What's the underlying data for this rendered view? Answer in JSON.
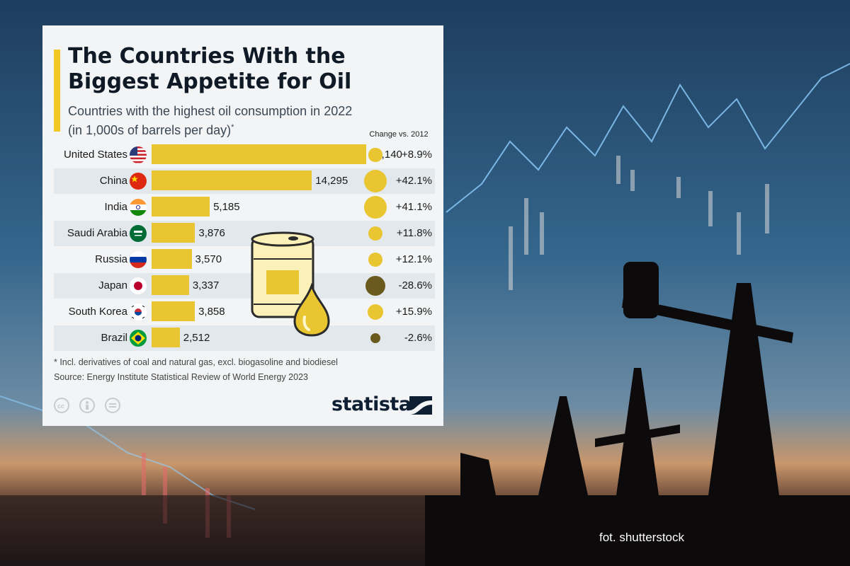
{
  "chart_data": {
    "type": "bar",
    "title": "The Countries With the Biggest Appetite for Oil",
    "subtitle": "Countries with the highest oil consumption in 2022 (in 1,000s of barrels per day)",
    "subtitle_marker": "*",
    "change_header": "Change vs. 2012",
    "categories": [
      "United States",
      "China",
      "India",
      "Saudi Arabia",
      "Russia",
      "Japan",
      "South Korea",
      "Brazil"
    ],
    "values": [
      19140,
      14295,
      5185,
      3876,
      3570,
      3337,
      3858,
      2512
    ],
    "value_labels": [
      "19,140",
      "14,295",
      "5,185",
      "3,876",
      "3,570",
      "3,337",
      "3,858",
      "2,512"
    ],
    "change_pct": [
      8.9,
      42.1,
      41.1,
      11.8,
      12.1,
      -28.6,
      15.9,
      -2.6
    ],
    "change_labels": [
      "+8.9%",
      "+42.1%",
      "+41.1%",
      "+11.8%",
      "+12.1%",
      "-28.6%",
      "+15.9%",
      "-2.6%"
    ],
    "flag_icons": [
      "us-flag-icon",
      "china-flag-icon",
      "india-flag-icon",
      "saudi-arabia-flag-icon",
      "russia-flag-icon",
      "japan-flag-icon",
      "south-korea-flag-icon",
      "brazil-flag-icon"
    ],
    "colors": {
      "bar": "#e9c631",
      "positive_dot": "#e9c631",
      "negative_dot": "#6b5a1e",
      "accent": "#f2c827"
    },
    "footnote": "* Incl. derivatives of coal and natural gas, excl. biogasoline and biodiesel",
    "source": "Source: Energy Institute Statistical Review of World Energy 2023",
    "brand": "statista"
  },
  "photo_credit": "fot. shutterstock"
}
